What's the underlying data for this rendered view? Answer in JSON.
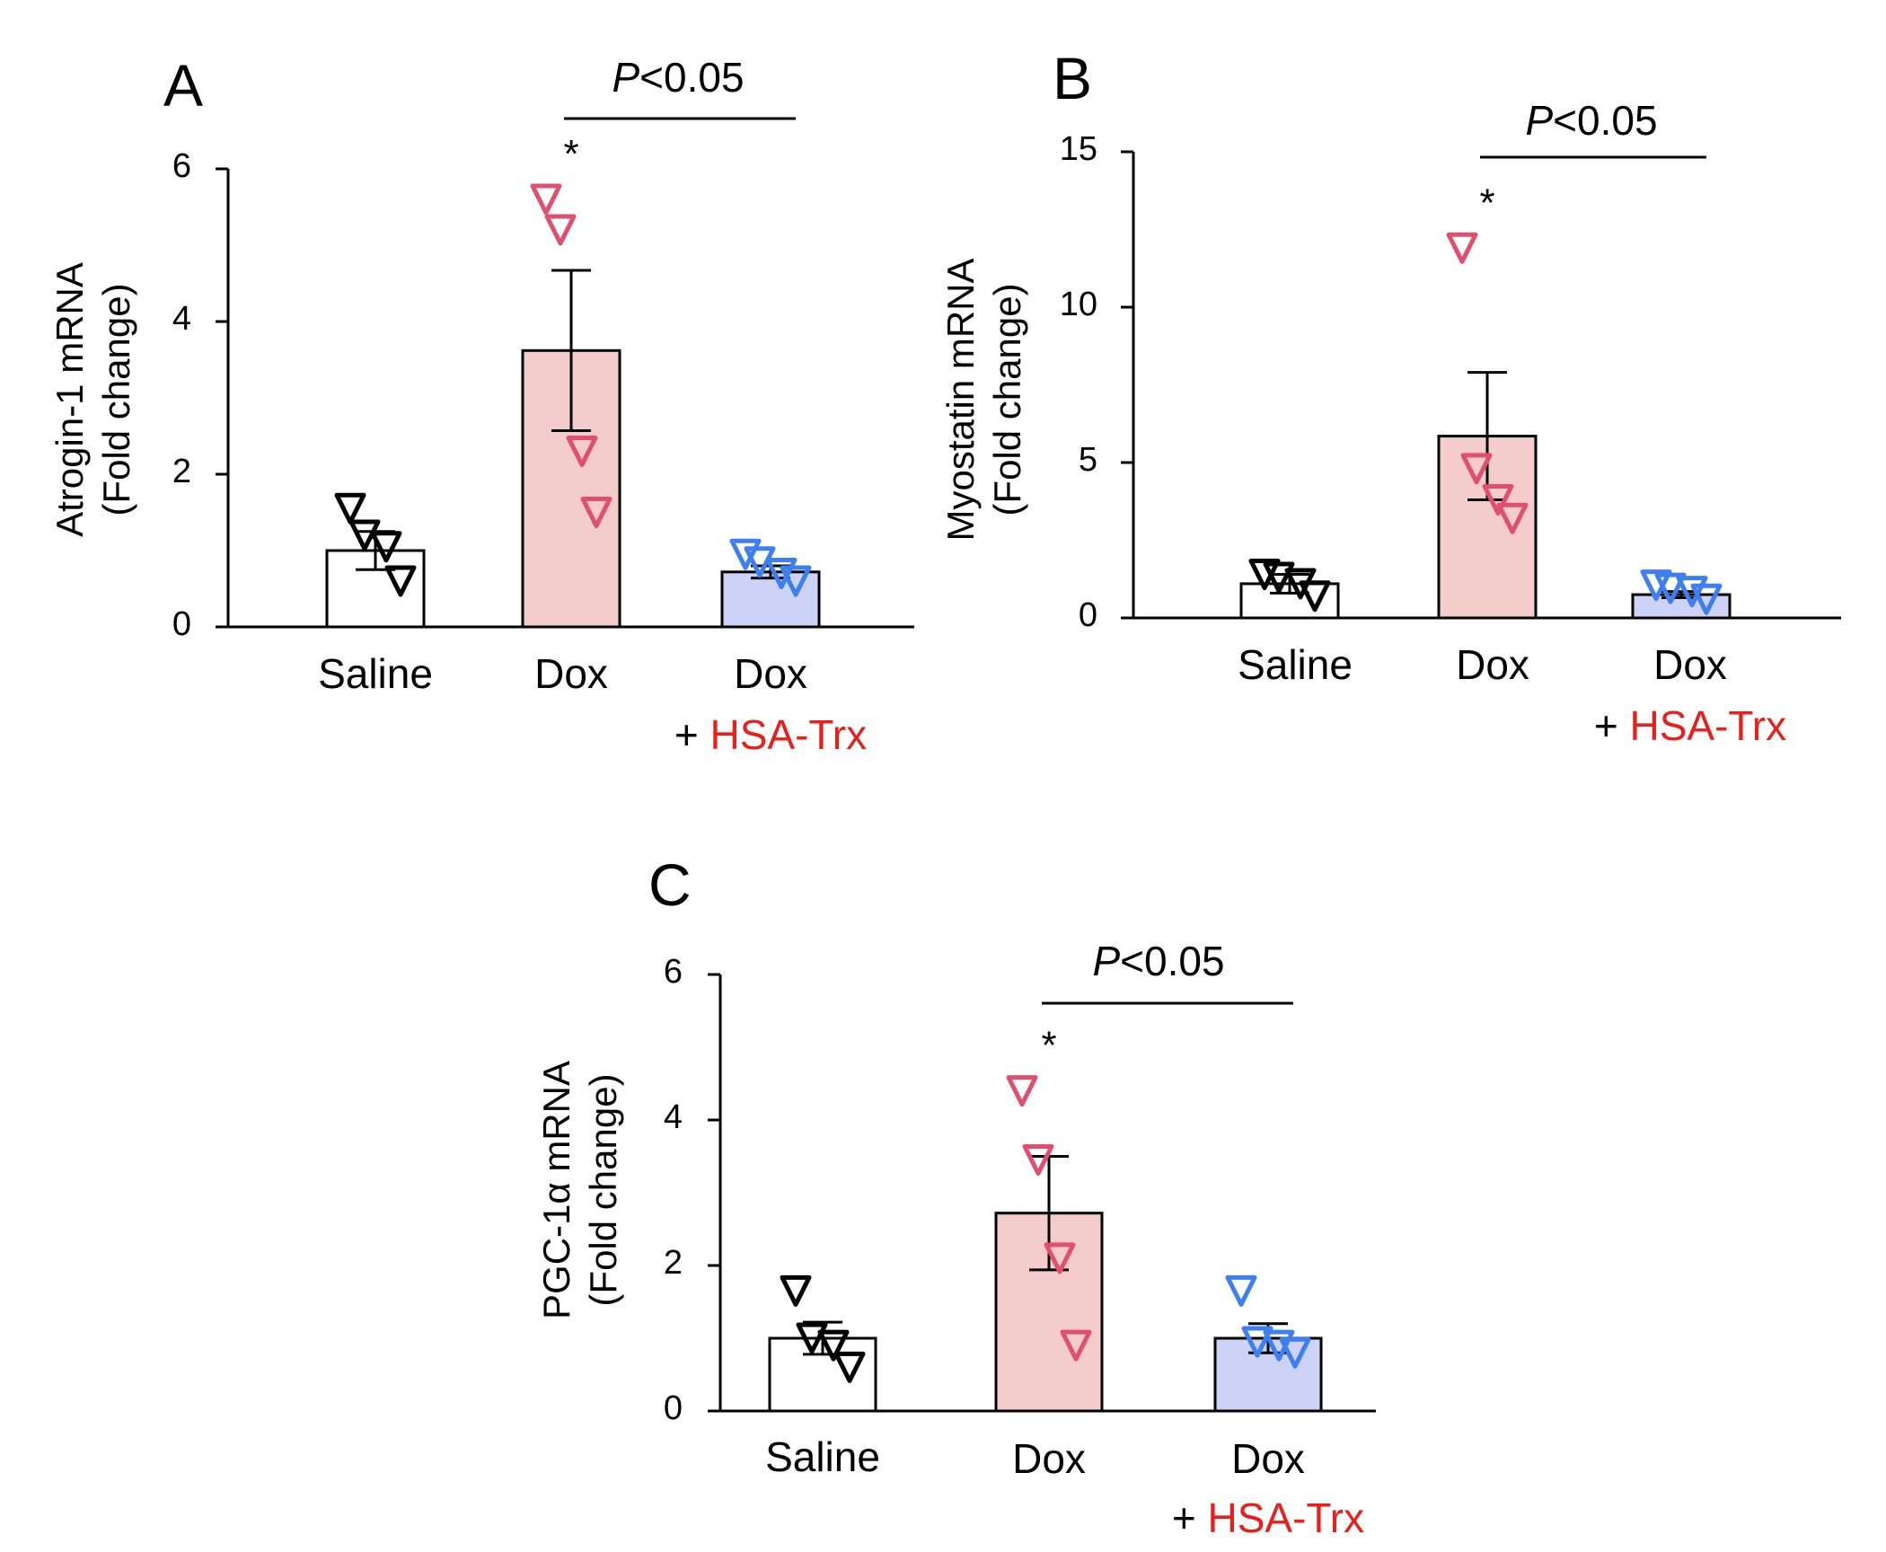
{
  "figure": {
    "colors": {
      "axis": "#000000",
      "saline_bar": "#ffffff",
      "dox_bar": "#f4cccc",
      "trx_bar": "#cdd3f6",
      "saline_marker": "#000000",
      "dox_marker": "#e0506e",
      "trx_marker": "#3d7ff0",
      "highlight_text": "#e8201c"
    }
  },
  "chart_data": [
    {
      "panel": "A",
      "type": "bar",
      "ylabel": [
        "Atrogin-1 mRNA",
        "(Fold change)"
      ],
      "ylim": [
        0,
        6
      ],
      "yticks": [
        "0",
        "2",
        "4",
        "6"
      ],
      "categories": [
        {
          "label": "Saline",
          "sub_prefix": "",
          "sub_highlight": ""
        },
        {
          "label": "Dox",
          "sub_prefix": "",
          "sub_highlight": ""
        },
        {
          "label": "Dox",
          "sub_prefix": "+ ",
          "sub_highlight": "HSA-Trx"
        }
      ],
      "series": [
        {
          "name": "Saline",
          "mean": 1.0,
          "sem": 0.25,
          "points": [
            1.55,
            1.2,
            1.05,
            0.6
          ]
        },
        {
          "name": "Dox",
          "mean": 3.62,
          "sem": 1.05,
          "points": [
            5.6,
            5.2,
            2.3,
            1.5
          ]
        },
        {
          "name": "Dox + HSA-Trx",
          "mean": 0.72,
          "sem": 0.08,
          "points": [
            0.95,
            0.85,
            0.7,
            0.6
          ]
        }
      ],
      "significance": {
        "label_p": "P",
        "label_rest": "<0.05",
        "from": 1,
        "to": 2
      },
      "star": "*"
    },
    {
      "panel": "B",
      "type": "bar",
      "ylabel": [
        "Myostatin mRNA",
        "(Fold change)"
      ],
      "ylim": [
        0,
        15
      ],
      "yticks": [
        "0",
        "5",
        "10",
        "15"
      ],
      "categories": [
        {
          "label": "Saline",
          "sub_prefix": "",
          "sub_highlight": ""
        },
        {
          "label": "Dox",
          "sub_prefix": "",
          "sub_highlight": ""
        },
        {
          "label": "Dox",
          "sub_prefix": "+ ",
          "sub_highlight": "HSA-Trx"
        }
      ],
      "series": [
        {
          "name": "Saline",
          "mean": 1.1,
          "sem": 0.3,
          "points": [
            1.4,
            1.3,
            1.1,
            0.7
          ]
        },
        {
          "name": "Dox",
          "mean": 5.85,
          "sem": 2.05,
          "points": [
            11.9,
            4.8,
            3.8,
            3.2
          ]
        },
        {
          "name": "Dox + HSA-Trx",
          "mean": 0.75,
          "sem": 0.1,
          "points": [
            1.05,
            0.95,
            0.85,
            0.6
          ]
        }
      ],
      "significance": {
        "label_p": "P",
        "label_rest": "<0.05",
        "from": 1,
        "to": 2
      },
      "star": "*"
    },
    {
      "panel": "C",
      "type": "bar",
      "ylabel": [
        "PGC-1α mRNA",
        "(Fold change)"
      ],
      "ylim": [
        0,
        6
      ],
      "yticks": [
        "0",
        "2",
        "4",
        "6"
      ],
      "categories": [
        {
          "label": "Saline",
          "sub_prefix": "",
          "sub_highlight": ""
        },
        {
          "label": "Dox",
          "sub_prefix": "",
          "sub_highlight": ""
        },
        {
          "label": "Dox",
          "sub_prefix": "+ ",
          "sub_highlight": "HSA-Trx"
        }
      ],
      "series": [
        {
          "name": "Saline",
          "mean": 1.0,
          "sem": 0.22,
          "points": [
            1.65,
            1.0,
            0.9,
            0.6
          ]
        },
        {
          "name": "Dox",
          "mean": 2.72,
          "sem": 0.78,
          "points": [
            4.4,
            3.45,
            2.1,
            0.9
          ]
        },
        {
          "name": "Dox + HSA-Trx",
          "mean": 1.0,
          "sem": 0.2,
          "points": [
            1.65,
            0.95,
            0.9,
            0.8
          ]
        }
      ],
      "significance": {
        "label_p": "P",
        "label_rest": "<0.05",
        "from": 1,
        "to": 2
      },
      "star": "*"
    }
  ]
}
